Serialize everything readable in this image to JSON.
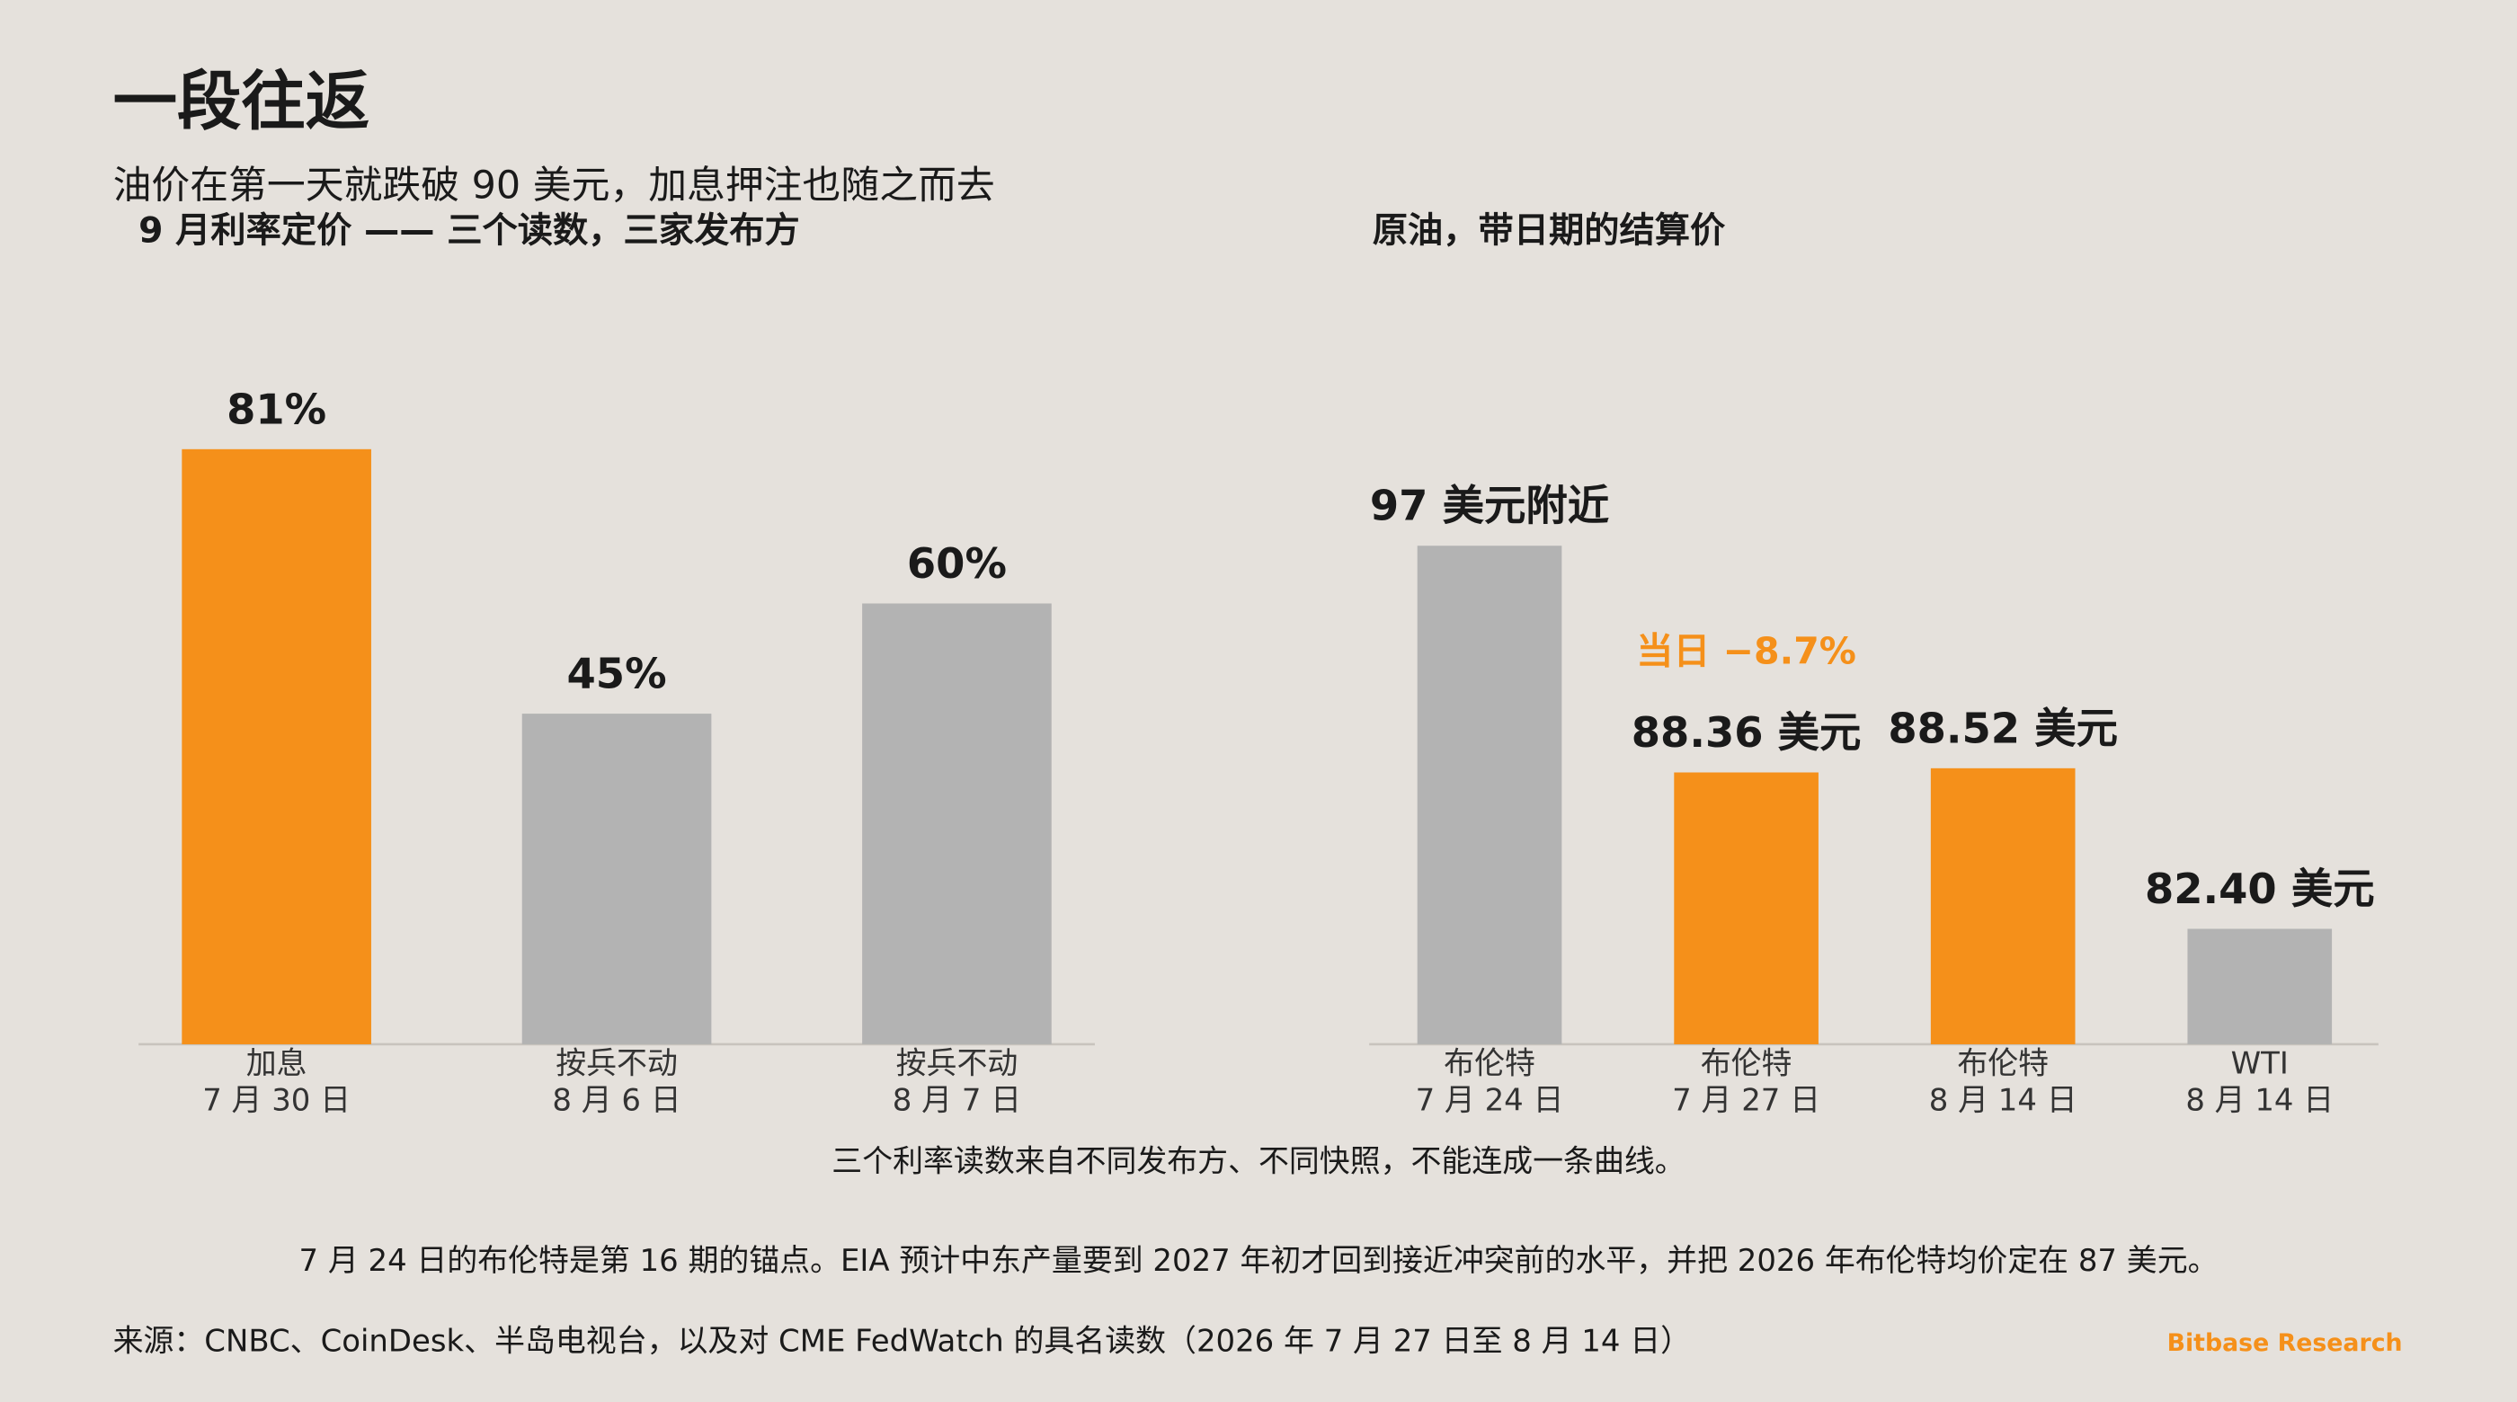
{
  "header": {
    "title": "一段往返",
    "subtitle": "油价在第一天就跌破 90 美元，加息押注也随之而去"
  },
  "chart_data": [
    {
      "type": "bar",
      "title": "9 月利率定价 —— 三个读数，三家发布方",
      "categories": [
        [
          "加息",
          "7 月 30 日"
        ],
        [
          "按兵不动",
          "8 月 6 日"
        ],
        [
          "按兵不动",
          "8 月 7 日"
        ]
      ],
      "values": [
        81,
        45,
        60
      ],
      "value_labels": [
        "81%",
        "45%",
        "60%"
      ],
      "colors": [
        "#f5901a",
        "#b3b3b3",
        "#b3b3b3"
      ],
      "ylim": [
        0,
        100
      ]
    },
    {
      "type": "bar",
      "title": "原油，带日期的结算价",
      "categories": [
        [
          "布伦特",
          "7 月 24 日"
        ],
        [
          "布伦特",
          "7 月 27 日"
        ],
        [
          "布伦特",
          "8 月 14 日"
        ],
        [
          "WTI",
          "8 月 14 日"
        ]
      ],
      "values": [
        97,
        88.36,
        88.52,
        82.4
      ],
      "value_labels": [
        "97 美元附近",
        "88.36 美元",
        "88.52 美元",
        "82.40 美元"
      ],
      "colors": [
        "#b3b3b3",
        "#f5901a",
        "#f5901a",
        "#b3b3b3"
      ],
      "ylim": [
        78,
        106
      ],
      "annotation": "当日 −8.7%"
    }
  ],
  "note": "三个利率读数来自不同发布方、不同快照，不能连成一条曲线。",
  "footnote": "7 月 24 日的布伦特是第 16 期的锚点。EIA 预计中东产量要到 2027 年初才回到接近冲突前的水平，并把 2026 年布伦特均价定在 87 美元。",
  "source": "来源：CNBC、CoinDesk、半岛电视台，以及对 CME FedWatch 的具名读数（2026 年 7 月 27 日至 8 月 14 日）",
  "brand": "Bitbase Research"
}
